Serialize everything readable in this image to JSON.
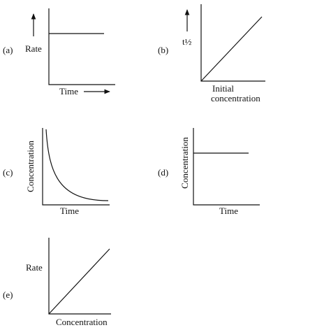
{
  "panels": [
    {
      "label": "(a)",
      "y_label": "Rate",
      "x_label": "Time"
    },
    {
      "label": "(b)",
      "y_label": "t½",
      "x_label": [
        "Initial",
        "concentration"
      ]
    },
    {
      "label": "(c)",
      "y_label": "Concentration",
      "x_label": "Time"
    },
    {
      "label": "(d)",
      "y_label": "Concentration",
      "x_label": "Time"
    },
    {
      "label": "(e)",
      "y_label": "Rate",
      "x_label": "Concentration"
    }
  ]
}
